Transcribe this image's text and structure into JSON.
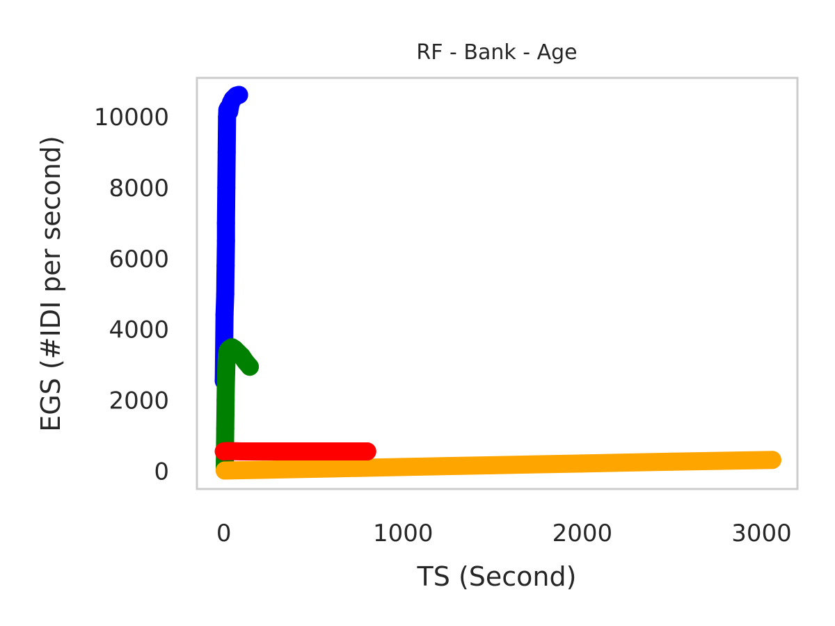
{
  "chart_data": {
    "type": "line",
    "title": "RF - Bank - Age",
    "xlabel": "TS (Second)",
    "ylabel": "EGS (#IDI  per second)",
    "xlim": [
      -150,
      3200
    ],
    "ylim": [
      -500,
      11100
    ],
    "xticks": [
      0,
      1000,
      2000,
      3000
    ],
    "yticks": [
      0,
      2000,
      4000,
      6000,
      8000,
      10000
    ],
    "grid": false,
    "legend": "none",
    "series": [
      {
        "color": "#0000ff",
        "marker": "circle",
        "points": [
          [
            0,
            2550
          ],
          [
            4,
            4420
          ],
          [
            8,
            5000
          ],
          [
            9,
            5500
          ],
          [
            10,
            5800
          ],
          [
            11,
            6200
          ],
          [
            12,
            6500
          ],
          [
            12,
            7000
          ],
          [
            13,
            7500
          ],
          [
            14,
            8000
          ],
          [
            15,
            8500
          ],
          [
            16,
            9000
          ],
          [
            17,
            9500
          ],
          [
            18,
            10000
          ],
          [
            20,
            10200
          ],
          [
            25,
            10250
          ],
          [
            30,
            10150
          ],
          [
            35,
            10300
          ],
          [
            40,
            10400
          ],
          [
            50,
            10500
          ],
          [
            60,
            10550
          ],
          [
            70,
            10600
          ],
          [
            85,
            10620
          ]
        ]
      },
      {
        "color": "#008000",
        "marker": "circle",
        "points": [
          [
            5,
            50
          ],
          [
            6,
            300
          ],
          [
            7,
            800
          ],
          [
            8,
            1200
          ],
          [
            9,
            1600
          ],
          [
            10,
            2000
          ],
          [
            11,
            2400
          ],
          [
            13,
            2800
          ],
          [
            15,
            3100
          ],
          [
            18,
            3300
          ],
          [
            22,
            3400
          ],
          [
            30,
            3450
          ],
          [
            45,
            3500
          ],
          [
            60,
            3450
          ],
          [
            80,
            3350
          ],
          [
            100,
            3250
          ],
          [
            120,
            3100
          ],
          [
            145,
            2950
          ]
        ]
      },
      {
        "color": "#ffa500",
        "marker": "circle",
        "points": [
          [
            5,
            20
          ],
          [
            100,
            30
          ],
          [
            300,
            50
          ],
          [
            600,
            80
          ],
          [
            1000,
            120
          ],
          [
            1500,
            170
          ],
          [
            2000,
            220
          ],
          [
            2500,
            270
          ],
          [
            3060,
            320
          ]
        ]
      },
      {
        "color": "#ff0000",
        "marker": "circle",
        "points": [
          [
            0,
            560
          ],
          [
            20,
            570
          ],
          [
            100,
            560
          ],
          [
            200,
            560
          ],
          [
            300,
            560
          ],
          [
            400,
            560
          ],
          [
            500,
            560
          ],
          [
            600,
            560
          ],
          [
            700,
            560
          ],
          [
            800,
            560
          ]
        ]
      }
    ]
  }
}
